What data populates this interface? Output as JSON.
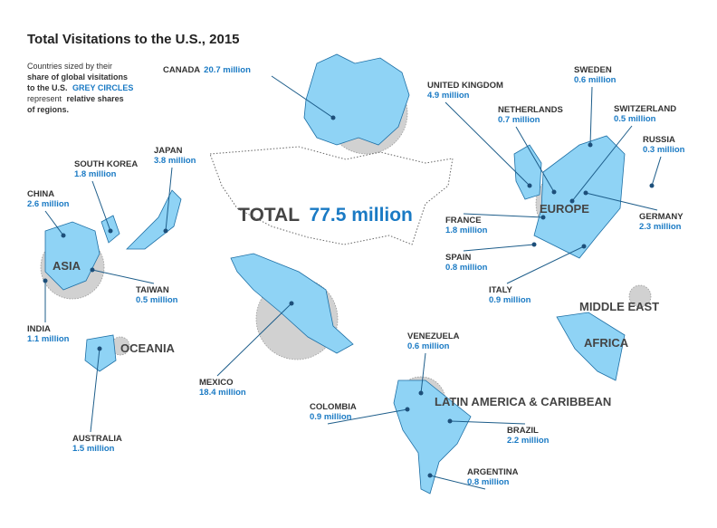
{
  "title": "Total Visitations to the U.S., 2015",
  "description": [
    "Countries sized by their",
    "share of global visitations",
    "to the U.S.",
    "GREY CIRCLES",
    "represent",
    "relative shares",
    "of regions."
  ],
  "total": {
    "label": "TOTAL",
    "value": "77.5 million"
  },
  "regions": [
    "EUROPE",
    "ASIA",
    "OCEANIA",
    "MIDDLE EAST",
    "AFRICA",
    "LATIN AMERICA & CARIBBEAN"
  ],
  "countries": [
    {
      "name": "CANADA",
      "value": "20.7 million"
    },
    {
      "name": "UNITED KINGDOM",
      "value": "4.9 million"
    },
    {
      "name": "NETHERLANDS",
      "value": "0.7 million"
    },
    {
      "name": "SWEDEN",
      "value": "0.6 million"
    },
    {
      "name": "SWITZERLAND",
      "value": "0.5 million"
    },
    {
      "name": "RUSSIA",
      "value": "0.3 million"
    },
    {
      "name": "GERMANY",
      "value": "2.3 million"
    },
    {
      "name": "FRANCE",
      "value": "1.8 million"
    },
    {
      "name": "SPAIN",
      "value": "0.8 million"
    },
    {
      "name": "ITALY",
      "value": "0.9 million"
    },
    {
      "name": "JAPAN",
      "value": "3.8 million"
    },
    {
      "name": "SOUTH KOREA",
      "value": "1.8 million"
    },
    {
      "name": "CHINA",
      "value": "2.6 million"
    },
    {
      "name": "TAIWAN",
      "value": "0.5 million"
    },
    {
      "name": "INDIA",
      "value": "1.1 million"
    },
    {
      "name": "AUSTRALIA",
      "value": "1.5 million"
    },
    {
      "name": "MEXICO",
      "value": "18.4 million"
    },
    {
      "name": "VENEZUELA",
      "value": "0.6 million"
    },
    {
      "name": "COLOMBIA",
      "value": "0.9 million"
    },
    {
      "name": "BRAZIL",
      "value": "2.2 million"
    },
    {
      "name": "ARGENTINA",
      "value": "0.8 million"
    }
  ]
}
